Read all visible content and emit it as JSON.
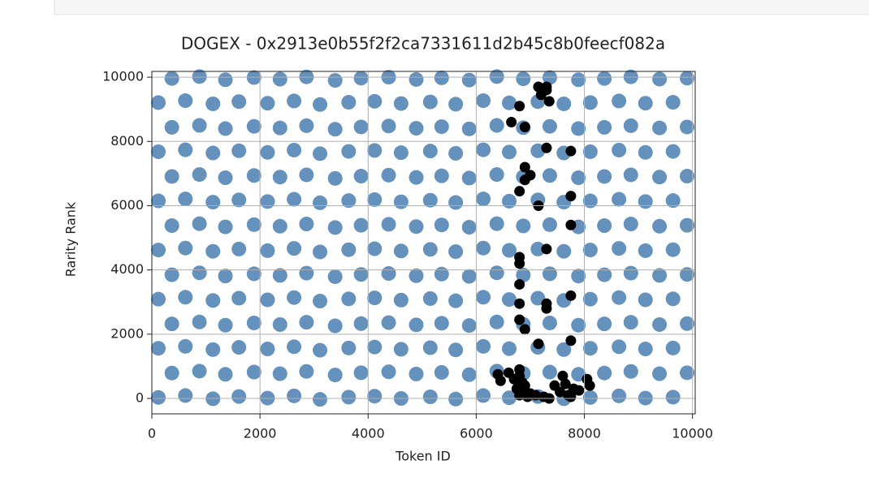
{
  "chart_data": {
    "type": "scatter",
    "title": "DOGEX - 0x2913e0b55f2f2ca7331611d2b45c8b0feecf082a",
    "xlabel": "Token ID",
    "ylabel": "Rarity Rank",
    "xlim": [
      0,
      10050
    ],
    "ylim": [
      -480,
      10180
    ],
    "xticks": [
      0,
      2000,
      4000,
      6000,
      8000,
      10000
    ],
    "yticks": [
      0,
      2000,
      4000,
      6000,
      8000,
      10000
    ],
    "grid": true,
    "series": [
      {
        "color": "#3f76ad",
        "alpha": 0.8,
        "x": [
          120,
          620,
          1130,
          1610,
          2140,
          2630,
          3110,
          3640,
          4120,
          4610,
          5150,
          5620,
          6130,
          6610,
          7140,
          7620,
          8110,
          8640,
          9130,
          9640,
          370,
          880,
          1360,
          1890,
          2370,
          2860,
          3390,
          3870,
          4380,
          4890,
          5360,
          5870,
          6380,
          6870,
          7360,
          7890,
          8370,
          8860,
          9390,
          9900,
          120,
          620,
          1130,
          1610,
          2140,
          2630,
          3110,
          3640,
          4120,
          4610,
          5150,
          5620,
          6130,
          6610,
          7140,
          7620,
          8110,
          8640,
          9130,
          9640,
          370,
          880,
          1360,
          1890,
          2370,
          2860,
          3390,
          3870,
          4380,
          4890,
          5360,
          5870,
          6380,
          6870,
          7360,
          7890,
          8370,
          8860,
          9390,
          9900,
          120,
          620,
          1130,
          1610,
          2140,
          2630,
          3110,
          3640,
          4120,
          4610,
          5150,
          5620,
          6130,
          6610,
          7140,
          7620,
          8110,
          8640,
          9130,
          9640,
          370,
          880,
          1360,
          1890,
          2370,
          2860,
          3390,
          3870,
          4380,
          4890,
          5360,
          5870,
          6380,
          6870,
          7360,
          7890,
          8370,
          8860,
          9390,
          9900,
          120,
          620,
          1130,
          1610,
          2140,
          2630,
          3110,
          3640,
          4120,
          4610,
          5150,
          5620,
          6130,
          6610,
          7140,
          7620,
          8110,
          8640,
          9130,
          9640,
          370,
          880,
          1360,
          1890,
          2370,
          2860,
          3390,
          3870,
          4380,
          4890,
          5360,
          5870,
          6380,
          6870,
          7360,
          7890,
          8370,
          8860,
          9390,
          9900,
          120,
          620,
          1130,
          1610,
          2140,
          2630,
          3110,
          3640,
          4120,
          4610,
          5150,
          5620,
          6130,
          6610,
          7140,
          7620,
          8110,
          8640,
          9130,
          9640,
          370,
          880,
          1360,
          1890,
          2370,
          2860,
          3390,
          3870,
          4380,
          4890,
          5360,
          5870,
          6380,
          6870,
          7360,
          7890,
          8370,
          8860,
          9390,
          9900,
          120,
          620,
          1130,
          1610,
          2140,
          2630,
          3110,
          3640,
          4120,
          4610,
          5150,
          5620,
          6130,
          6610,
          7140,
          7620,
          8110,
          8640,
          9130,
          9640,
          370,
          880,
          1360,
          1890,
          2370,
          2860,
          3390,
          3870,
          4380,
          4890,
          5360,
          5870,
          6380,
          6870,
          7360,
          7890,
          8370,
          8860,
          9390,
          9900,
          120,
          620,
          1130,
          1610,
          2140,
          2630,
          3110,
          3640,
          4120,
          4610,
          5150,
          5620,
          6130,
          6610,
          7140,
          7620,
          8110,
          8640,
          9130,
          9640,
          370,
          880,
          1360,
          1890,
          2370,
          2860,
          3390,
          3870,
          4380,
          4890,
          5360,
          5870,
          6380,
          6870,
          7360,
          7890,
          8370,
          8860,
          9390,
          9900
        ],
        "values": [
          30,
          90,
          -10,
          60,
          10,
          80,
          -30,
          40,
          70,
          0,
          50,
          -20,
          90,
          20,
          60,
          -10,
          30,
          80,
          10,
          40,
          790,
          850,
          750,
          820,
          770,
          840,
          730,
          800,
          830,
          760,
          810,
          740,
          850,
          780,
          820,
          750,
          790,
          840,
          770,
          800,
          1560,
          1620,
          1520,
          1590,
          1540,
          1610,
          1500,
          1570,
          1600,
          1530,
          1580,
          1510,
          1620,
          1550,
          1590,
          1520,
          1560,
          1610,
          1540,
          1570,
          2320,
          2380,
          2280,
          2350,
          2300,
          2370,
          2260,
          2330,
          2360,
          2290,
          2340,
          2270,
          2380,
          2310,
          2350,
          2280,
          2320,
          2370,
          2300,
          2330,
          3090,
          3150,
          3050,
          3120,
          3070,
          3140,
          3030,
          3100,
          3130,
          3060,
          3110,
          3040,
          3150,
          3080,
          3120,
          3050,
          3090,
          3140,
          3070,
          3100,
          3850,
          3910,
          3810,
          3880,
          3830,
          3900,
          3790,
          3860,
          3890,
          3820,
          3870,
          3800,
          3910,
          3840,
          3880,
          3810,
          3850,
          3900,
          3830,
          3860,
          4620,
          4680,
          4580,
          4650,
          4600,
          4670,
          4560,
          4630,
          4660,
          4590,
          4640,
          4570,
          4680,
          4610,
          4650,
          4580,
          4620,
          4670,
          4600,
          4630,
          5380,
          5440,
          5340,
          5410,
          5360,
          5430,
          5320,
          5390,
          5420,
          5350,
          5400,
          5330,
          5440,
          5370,
          5410,
          5340,
          5380,
          5430,
          5360,
          5390,
          6150,
          6210,
          6110,
          6180,
          6130,
          6200,
          6090,
          6160,
          6190,
          6120,
          6170,
          6100,
          6210,
          6140,
          6180,
          6110,
          6150,
          6200,
          6130,
          6160,
          6910,
          6970,
          6870,
          6940,
          6890,
          6960,
          6850,
          6920,
          6950,
          6880,
          6930,
          6860,
          6970,
          6900,
          6940,
          6870,
          6910,
          6960,
          6890,
          6920,
          7680,
          7740,
          7640,
          7710,
          7660,
          7730,
          7620,
          7690,
          7720,
          7650,
          7700,
          7630,
          7740,
          7670,
          7710,
          7640,
          7680,
          7730,
          7660,
          7690,
          8440,
          8500,
          8400,
          8470,
          8420,
          8490,
          8380,
          8450,
          8480,
          8410,
          8460,
          8390,
          8500,
          8430,
          8470,
          8400,
          8440,
          8490,
          8420,
          8450,
          9210,
          9270,
          9170,
          9240,
          9190,
          9260,
          9150,
          9220,
          9250,
          9180,
          9230,
          9160,
          9270,
          9200,
          9240,
          9170,
          9210,
          9260,
          9190,
          9220,
          9960,
          10020,
          9920,
          9990,
          9940,
          10010,
          9900,
          9970,
          10000,
          9930,
          9980,
          9910,
          10020,
          9950,
          9990,
          9920,
          9960,
          10010,
          9940,
          9970
        ]
      },
      {
        "color": "#000000",
        "alpha": 1,
        "x": [
          6800,
          7150,
          7300,
          7200,
          7350,
          7300,
          6650,
          6900,
          7300,
          7750,
          6900,
          7000,
          6900,
          6800,
          7750,
          7150,
          7750,
          7300,
          6800,
          6800,
          6800,
          7750,
          7300,
          7300,
          6800,
          6800,
          6900,
          7750,
          7150,
          6400,
          6450,
          6600,
          6700,
          6800,
          6800,
          6850,
          6750,
          6900,
          6800,
          6950,
          7100,
          7250,
          7350,
          7450,
          7600,
          7650,
          7550,
          7700,
          7800,
          7900,
          8050,
          8100,
          7750,
          7000,
          6900
        ],
        "values": [
          9100,
          9700,
          9700,
          9450,
          9250,
          9600,
          8600,
          8450,
          7800,
          7700,
          7200,
          6950,
          6800,
          6450,
          6300,
          6000,
          5400,
          4650,
          4400,
          4200,
          3550,
          3200,
          2950,
          2800,
          2950,
          2450,
          2150,
          1800,
          1700,
          750,
          550,
          800,
          600,
          900,
          700,
          500,
          300,
          250,
          100,
          50,
          100,
          50,
          0,
          400,
          700,
          450,
          200,
          100,
          300,
          250,
          600,
          400,
          50,
          150,
          400
        ]
      }
    ]
  }
}
